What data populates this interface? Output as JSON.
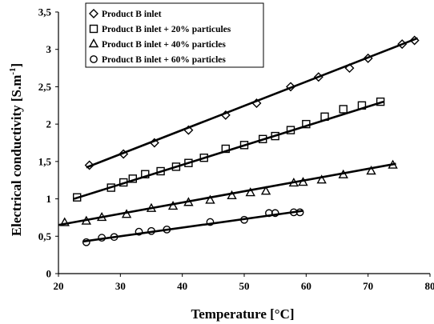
{
  "chart_data": {
    "type": "scatter",
    "xlabel": "Temperature [°C]",
    "ylabel": "Electrical conductivity [S.m",
    "ylabel_sup": "-1",
    "ylabel_end": "]",
    "xlim": [
      20,
      80
    ],
    "ylim": [
      0,
      3.5
    ],
    "x_ticks": [
      "20",
      "30",
      "40",
      "50",
      "60",
      "70",
      "80"
    ],
    "y_ticks": [
      "0",
      "0,5",
      "1",
      "1,5",
      "2",
      "2,5",
      "3",
      "3,5"
    ],
    "grid": false,
    "legend_position": "top-left",
    "series": [
      {
        "name": "Product B inlet",
        "marker": "diamond",
        "x": [
          25,
          30.5,
          35.5,
          41,
          47,
          52,
          57.5,
          62,
          67,
          70,
          75.5,
          77.5
        ],
        "y": [
          1.45,
          1.6,
          1.75,
          1.92,
          2.12,
          2.28,
          2.5,
          2.63,
          2.75,
          2.88,
          3.07,
          3.12
        ],
        "trend": [
          [
            24.5,
            1.42
          ],
          [
            78,
            3.15
          ]
        ]
      },
      {
        "name": "Product B inlet + 20% particules",
        "marker": "square",
        "x": [
          23,
          28.5,
          30.5,
          32,
          34,
          36.5,
          39,
          41,
          43.5,
          47,
          50,
          53,
          55,
          57.5,
          60,
          63,
          66,
          69,
          72
        ],
        "y": [
          1.02,
          1.15,
          1.22,
          1.27,
          1.33,
          1.37,
          1.43,
          1.48,
          1.55,
          1.67,
          1.72,
          1.8,
          1.84,
          1.92,
          2.0,
          2.1,
          2.2,
          2.25,
          2.3
        ],
        "trend": [
          [
            22.5,
            1.0
          ],
          [
            72.5,
            2.3
          ]
        ]
      },
      {
        "name": "Product B inlet + 40% particles",
        "marker": "triangle",
        "x": [
          21,
          24.5,
          27,
          31,
          35,
          38.5,
          41,
          44.5,
          48,
          51,
          53.5,
          58,
          59.5,
          62.5,
          66,
          70.5,
          74
        ],
        "y": [
          0.68,
          0.7,
          0.75,
          0.79,
          0.87,
          0.9,
          0.95,
          0.98,
          1.04,
          1.08,
          1.1,
          1.21,
          1.22,
          1.25,
          1.32,
          1.37,
          1.45
        ],
        "trend": [
          [
            20,
            0.65
          ],
          [
            74.5,
            1.47
          ]
        ]
      },
      {
        "name": "Product B inlet + 60% particles",
        "marker": "circle",
        "x": [
          24.5,
          27,
          29,
          33,
          35,
          37.5,
          44.5,
          50,
          54,
          55,
          58,
          59
        ],
        "y": [
          0.42,
          0.48,
          0.49,
          0.56,
          0.57,
          0.59,
          0.69,
          0.72,
          0.81,
          0.81,
          0.82,
          0.82
        ],
        "trend": [
          [
            24,
            0.43
          ],
          [
            59.5,
            0.84
          ]
        ]
      }
    ]
  }
}
